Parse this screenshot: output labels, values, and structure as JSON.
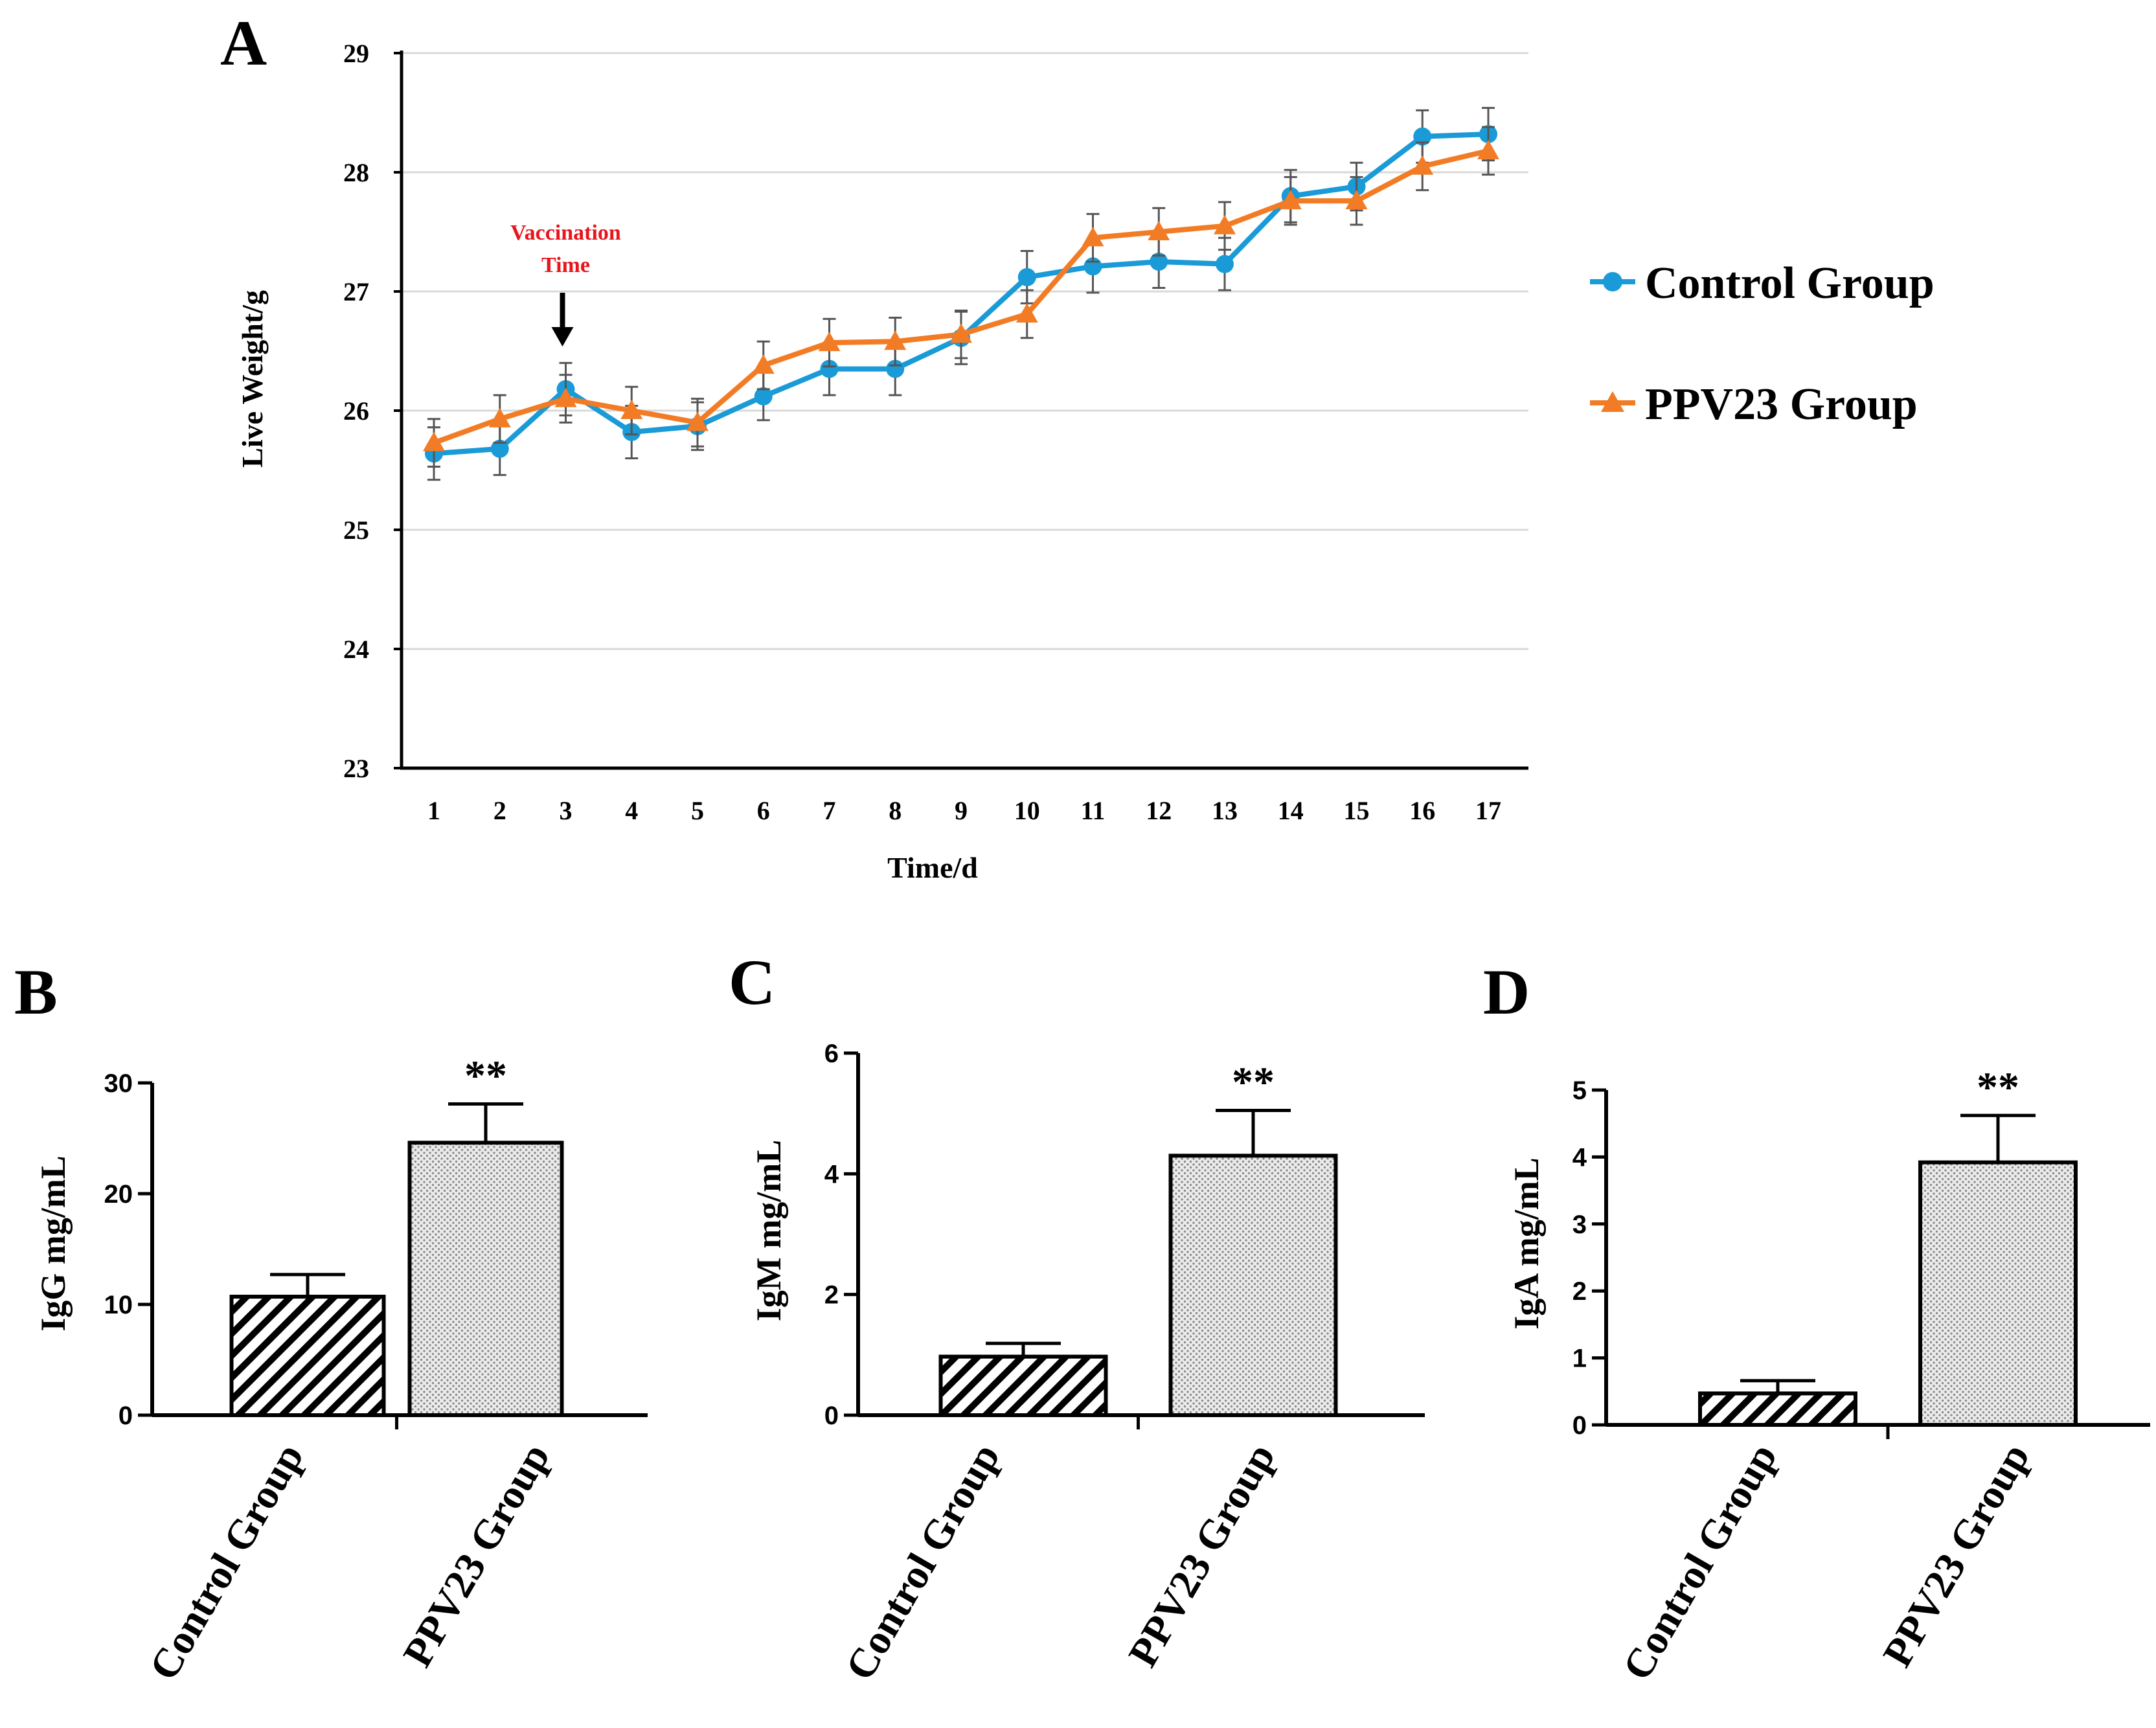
{
  "colors": {
    "control": "#1a9ad6",
    "ppv23": "#f27c25",
    "annotation": "#e8151c",
    "grid": "#d9d9d9",
    "error": "#555555"
  },
  "panel_letters": [
    "A",
    "B",
    "C",
    "D"
  ],
  "chart_data": [
    {
      "id": "A",
      "type": "line",
      "title": "",
      "xlabel": "Time/d",
      "ylabel": "Live Weight/g",
      "x": [
        1,
        2,
        3,
        4,
        5,
        6,
        7,
        8,
        9,
        10,
        11,
        12,
        13,
        14,
        15,
        16,
        17
      ],
      "ylim": [
        23,
        29
      ],
      "yticks": [
        23,
        24,
        25,
        26,
        27,
        28,
        29
      ],
      "grid": true,
      "legend_position": "right",
      "annotation": {
        "lines": [
          "Vaccination",
          "Time"
        ],
        "x": 3,
        "arrow": true
      },
      "series": [
        {
          "name": "Control Group",
          "marker": "circle",
          "values": [
            25.64,
            25.68,
            26.18,
            25.82,
            25.87,
            26.12,
            26.35,
            26.35,
            26.61,
            27.12,
            27.21,
            27.25,
            27.23,
            27.8,
            27.88,
            28.3,
            28.32
          ],
          "errors": [
            0.22,
            0.22,
            0.22,
            0.22,
            0.2,
            0.2,
            0.22,
            0.22,
            0.22,
            0.22,
            0.22,
            0.22,
            0.22,
            0.22,
            0.2,
            0.22,
            0.22
          ]
        },
        {
          "name": "PPV23 Group",
          "marker": "triangle",
          "values": [
            25.73,
            25.93,
            26.1,
            26.0,
            25.9,
            26.38,
            26.57,
            26.58,
            26.64,
            26.81,
            27.45,
            27.5,
            27.55,
            27.76,
            27.76,
            28.05,
            28.18
          ],
          "errors": [
            0.2,
            0.2,
            0.2,
            0.2,
            0.2,
            0.2,
            0.2,
            0.2,
            0.2,
            0.2,
            0.2,
            0.2,
            0.2,
            0.2,
            0.2,
            0.2,
            0.2
          ]
        }
      ]
    },
    {
      "id": "B",
      "type": "bar",
      "ylabel": "IgG mg/mL",
      "categories": [
        "Control Group",
        "PPV23 Group"
      ],
      "values": [
        10.7,
        24.6
      ],
      "errors": [
        2.0,
        3.5
      ],
      "ylim": [
        0,
        30
      ],
      "yticks": [
        0,
        10,
        20,
        30
      ],
      "significance": [
        "",
        "**"
      ]
    },
    {
      "id": "C",
      "type": "bar",
      "ylabel": "IgM mg/mL",
      "categories": [
        "Control Group",
        "PPV23 Group"
      ],
      "values": [
        0.97,
        4.3
      ],
      "errors": [
        0.22,
        0.75
      ],
      "ylim": [
        0,
        6
      ],
      "yticks": [
        0,
        2,
        4,
        6
      ],
      "significance": [
        "",
        "**"
      ]
    },
    {
      "id": "D",
      "type": "bar",
      "ylabel": "IgA mg/mL",
      "categories": [
        "Control Group",
        "PPV23 Group"
      ],
      "values": [
        0.47,
        3.92
      ],
      "errors": [
        0.19,
        0.7
      ],
      "ylim": [
        0,
        5
      ],
      "yticks": [
        0,
        1,
        2,
        3,
        4,
        5
      ],
      "significance": [
        "",
        "**"
      ]
    }
  ]
}
